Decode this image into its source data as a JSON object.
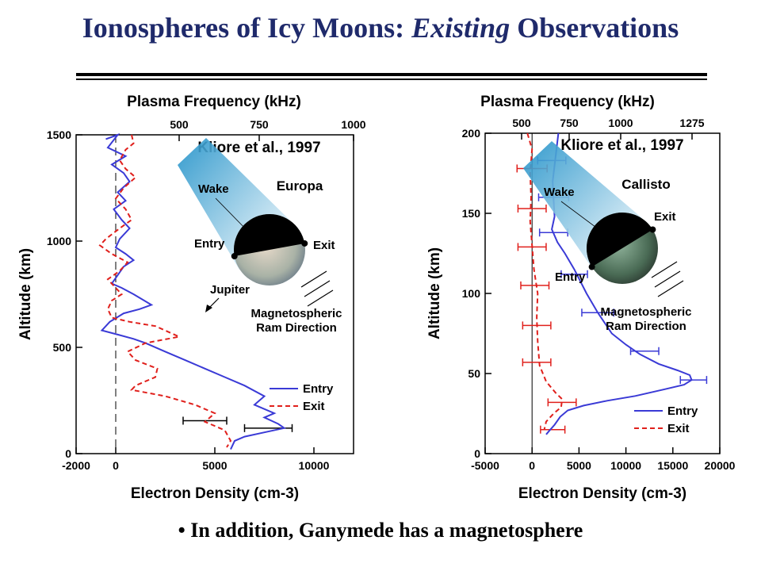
{
  "slide": {
    "title_part1": "Ionospheres of Icy Moons: ",
    "title_emph": "Existing",
    "title_part2": " Observations",
    "bullet": "• In addition, Ganymede has a magnetosphere"
  },
  "colors": {
    "title": "#1f2a6b",
    "entry": "#3a3ad6",
    "exit": "#e0201c"
  },
  "chart_data": [
    {
      "type": "line",
      "moon": "Europa",
      "citation": "Kliore et al., 1997",
      "top_label": "Plasma Frequency (kHz)",
      "xlabel": "Electron Density (cm-3)",
      "ylabel": "Altitude (km)",
      "xlim": [
        -2000,
        12000
      ],
      "ylim": [
        0,
        1500
      ],
      "xticks": [
        -2000,
        0,
        5000,
        10000
      ],
      "yticks": [
        0,
        500,
        1000,
        1500
      ],
      "top_ticks": [
        500,
        750,
        1000
      ],
      "annotations": [
        "Wake",
        "Entry",
        "Exit",
        "Jupiter",
        "Magnetospheric",
        "Ram Direction"
      ],
      "series": [
        {
          "name": "Entry",
          "points": [
            [
              -500,
              1480
            ],
            [
              100,
              1500
            ],
            [
              -400,
              1440
            ],
            [
              500,
              1400
            ],
            [
              -200,
              1360
            ],
            [
              400,
              1320
            ],
            [
              700,
              1280
            ],
            [
              100,
              1230
            ],
            [
              500,
              1190
            ],
            [
              -100,
              1150
            ],
            [
              300,
              1100
            ],
            [
              700,
              1060
            ],
            [
              200,
              1010
            ],
            [
              0,
              970
            ],
            [
              500,
              940
            ],
            [
              900,
              910
            ],
            [
              400,
              880
            ],
            [
              100,
              840
            ],
            [
              -200,
              800
            ],
            [
              300,
              780
            ],
            [
              900,
              750
            ],
            [
              1800,
              700
            ],
            [
              1200,
              680
            ],
            [
              400,
              660
            ],
            [
              -300,
              620
            ],
            [
              -700,
              580
            ],
            [
              100,
              560
            ],
            [
              900,
              540
            ],
            [
              1500,
              520
            ],
            [
              2500,
              480
            ],
            [
              3500,
              440
            ],
            [
              4500,
              400
            ],
            [
              5500,
              360
            ],
            [
              6500,
              320
            ],
            [
              7500,
              270
            ],
            [
              7000,
              230
            ],
            [
              8000,
              190
            ],
            [
              7500,
              170
            ],
            [
              8200,
              140
            ],
            [
              8500,
              120
            ],
            [
              7500,
              100
            ],
            [
              6500,
              80
            ],
            [
              6000,
              60
            ],
            [
              5800,
              20
            ]
          ]
        },
        {
          "name": "Exit",
          "points": [
            [
              800,
              1500
            ],
            [
              900,
              1460
            ],
            [
              500,
              1430
            ],
            [
              200,
              1380
            ],
            [
              500,
              1340
            ],
            [
              1000,
              1300
            ],
            [
              400,
              1250
            ],
            [
              0,
              1200
            ],
            [
              500,
              1150
            ],
            [
              800,
              1100
            ],
            [
              200,
              1060
            ],
            [
              -500,
              1010
            ],
            [
              -800,
              980
            ],
            [
              -200,
              940
            ],
            [
              600,
              900
            ],
            [
              200,
              860
            ],
            [
              -400,
              820
            ],
            [
              0,
              780
            ],
            [
              300,
              750
            ],
            [
              -200,
              720
            ],
            [
              -400,
              680
            ],
            [
              -200,
              640
            ],
            [
              700,
              620
            ],
            [
              2000,
              600
            ],
            [
              3200,
              550
            ],
            [
              1500,
              520
            ],
            [
              600,
              480
            ],
            [
              1000,
              440
            ],
            [
              2100,
              400
            ],
            [
              2000,
              360
            ],
            [
              1000,
              320
            ],
            [
              800,
              300
            ],
            [
              2500,
              270
            ],
            [
              4000,
              230
            ],
            [
              5000,
              190
            ],
            [
              4500,
              150
            ],
            [
              5500,
              110
            ],
            [
              5800,
              60
            ],
            [
              5600,
              30
            ]
          ]
        }
      ],
      "error_bars": [
        {
          "x": 4500,
          "err": 1100,
          "y": 155
        },
        {
          "x": 7700,
          "err": 1200,
          "y": 120
        }
      ]
    },
    {
      "type": "line",
      "moon": "Callisto",
      "citation": "Kliore et al., 1997",
      "top_label": "Plasma Frequency (kHz)",
      "xlabel": "Electron Density (cm-3)",
      "ylabel": "Altitude (km)",
      "xlim": [
        -5000,
        20000
      ],
      "ylim": [
        0,
        200
      ],
      "xticks": [
        -5000,
        0,
        5000,
        10000,
        15000,
        20000
      ],
      "yticks": [
        0,
        50,
        100,
        150,
        200
      ],
      "top_ticks": [
        500,
        750,
        1000,
        1275
      ],
      "annotations": [
        "Wake",
        "Entry",
        "Exit",
        "Magnetospheric",
        "Ram Direction"
      ],
      "series": [
        {
          "name": "Entry",
          "points": [
            [
              2800,
              200
            ],
            [
              2500,
              185
            ],
            [
              2200,
              170
            ],
            [
              2300,
              158
            ],
            [
              2400,
              148
            ],
            [
              2100,
              140
            ],
            [
              2700,
              132
            ],
            [
              3500,
              125
            ],
            [
              4500,
              115
            ],
            [
              5800,
              100
            ],
            [
              7000,
              88
            ],
            [
              8500,
              75
            ],
            [
              10000,
              68
            ],
            [
              11500,
              62
            ],
            [
              13500,
              56
            ],
            [
              15500,
              52
            ],
            [
              16800,
              49
            ],
            [
              17000,
              46
            ],
            [
              16200,
              43
            ],
            [
              14000,
              40
            ],
            [
              11000,
              36
            ],
            [
              8000,
              33
            ],
            [
              5500,
              30
            ],
            [
              3800,
              27
            ],
            [
              3000,
              23
            ],
            [
              2400,
              18
            ],
            [
              1800,
              14
            ],
            [
              1500,
              12
            ]
          ]
        },
        {
          "name": "Exit",
          "points": [
            [
              -500,
              200
            ],
            [
              0,
              190
            ],
            [
              -200,
              175
            ],
            [
              -100,
              160
            ],
            [
              -200,
              145
            ],
            [
              0,
              130
            ],
            [
              200,
              115
            ],
            [
              600,
              100
            ],
            [
              500,
              85
            ],
            [
              600,
              70
            ],
            [
              800,
              55
            ],
            [
              1500,
              45
            ],
            [
              2500,
              38
            ],
            [
              3200,
              34
            ],
            [
              3100,
              29
            ],
            [
              2300,
              25
            ],
            [
              1500,
              20
            ],
            [
              1300,
              15
            ]
          ]
        }
      ],
      "error_bars": [
        {
          "x": 2100,
          "err": 1500,
          "y": 183
        },
        {
          "x": 2300,
          "err": 1600,
          "y": 160
        },
        {
          "x": 2300,
          "err": 1500,
          "y": 138
        },
        {
          "x": 4500,
          "err": 1400,
          "y": 112
        },
        {
          "x": 7000,
          "err": 1700,
          "y": 88
        },
        {
          "x": 12000,
          "err": 1500,
          "y": 64
        },
        {
          "x": 17200,
          "err": 1400,
          "y": 46
        },
        {
          "x": 3200,
          "err": 1500,
          "y": 32
        },
        {
          "x": 2200,
          "err": 1300,
          "y": 15
        },
        {
          "x": 0,
          "err": 1600,
          "y": 178
        },
        {
          "x": 0,
          "err": 1500,
          "y": 153
        },
        {
          "x": 0,
          "err": 1500,
          "y": 129
        },
        {
          "x": 300,
          "err": 1500,
          "y": 105
        },
        {
          "x": 500,
          "err": 1500,
          "y": 80
        },
        {
          "x": 500,
          "err": 1500,
          "y": 57
        }
      ]
    }
  ]
}
